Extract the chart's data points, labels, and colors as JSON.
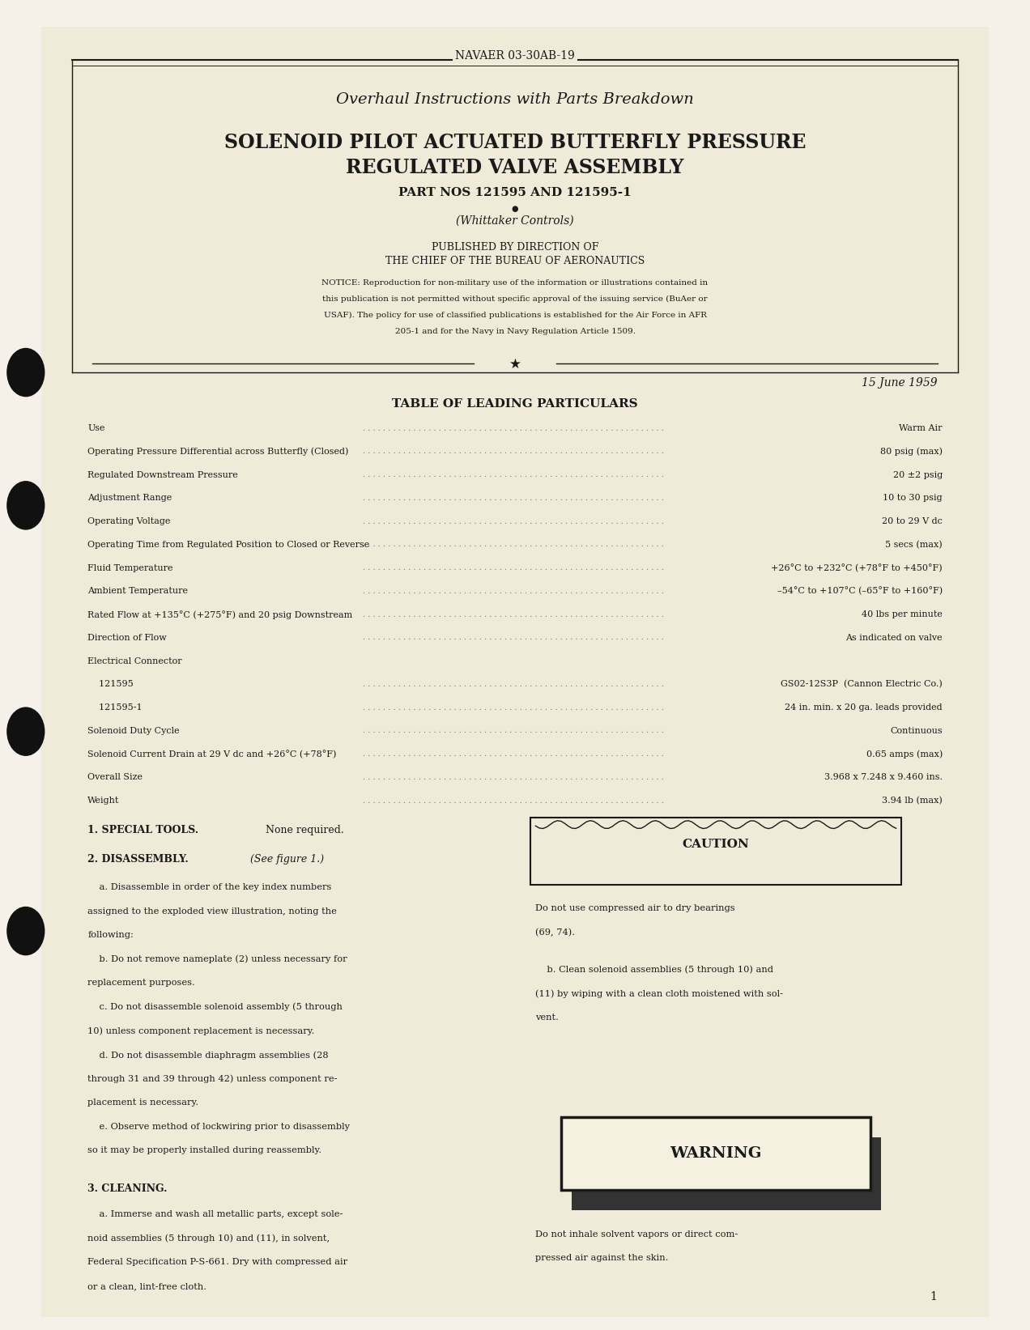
{
  "bg_color": "#f5f0e8",
  "page_color": "#f0ead8",
  "text_color": "#1a1a1a",
  "header_text": "NAVAER 03-30AB-19",
  "subtitle": "Overhaul Instructions with Parts Breakdown",
  "main_title_line1": "SOLENOID PILOT ACTUATED BUTTERFLY PRESSURE",
  "main_title_line2": "REGULATED VALVE ASSEMBLY",
  "part_nos": "PART NOS 121595 AND 121595-1",
  "manufacturer": "(Whittaker Controls)",
  "published_by_line1": "PUBLISHED BY DIRECTION OF",
  "published_by_line2": "THE CHIEF OF THE BUREAU OF AERONAUTICS",
  "notice_text": "NOTICE: Reproduction for non-military use of the information or illustrations contained in\nthis publication is not permitted without specific approval of the issuing service (BuAer or\nUSAF). The policy for use of classified publications is established for the Air Force in AFR\n205-1 and for the Navy in Navy Regulation Article 1509.",
  "date": "15 June 1959",
  "table_title": "TABLE OF LEADING PARTICULARS",
  "particulars": [
    [
      "Use",
      "Warm Air"
    ],
    [
      "Operating Pressure Differential across Butterfly (Closed)",
      "80 psig (max)"
    ],
    [
      "Regulated Downstream Pressure",
      "20 ±2 psig"
    ],
    [
      "Adjustment Range",
      "10 to 30 psig"
    ],
    [
      "Operating Voltage",
      "20 to 29 V dc"
    ],
    [
      "Operating Time from Regulated Position to Closed or Reverse",
      "5 secs (max)"
    ],
    [
      "Fluid Temperature",
      "+26°C to +232°C (+78°F to +450°F)"
    ],
    [
      "Ambient Temperature",
      "–54°C to +107°C (–65°F to +160°F)"
    ],
    [
      "Rated Flow at +135°C (+275°F) and 20 psig Downstream",
      "40 lbs per minute"
    ],
    [
      "Direction of Flow",
      "As indicated on valve"
    ],
    [
      "Electrical Connector",
      ""
    ],
    [
      "    121595",
      "GS02-12S3P  (Cannon Electric Co.)"
    ],
    [
      "    121595-1",
      "24 in. min. x 20 ga. leads provided"
    ],
    [
      "Solenoid Duty Cycle",
      "Continuous"
    ],
    [
      "Solenoid Current Drain at 29 V dc and +26°C (+78°F)",
      "0.65 amps (max)"
    ],
    [
      "Overall Size",
      "3.968 x 7.248 x 9.460 ins."
    ],
    [
      "Weight",
      "3.94 lb (max)"
    ]
  ],
  "section1_title": "1. SPECIAL TOOLS.",
  "section1_text": " None required.",
  "section2_title": "2. DISASSEMBLY.",
  "section2_italic": " (See figure 1.)",
  "section2_text": "    a. Disassemble in order of the key index numbers\nassigned to the exploded view illustration, noting the\nfollowing:\n    b. Do not remove nameplate (2) unless necessary for\nreplacement purposes.\n    c. Do not disassemble solenoid assembly (5 through\n10) unless component replacement is necessary.\n    d. Do not disassemble diaphragm assemblies (28\nthrough 31 and 39 through 42) unless component re-\nplacement is necessary.\n    e. Observe method of lockwiring prior to disassembly\nso it may be properly installed during reassembly.",
  "section3_title": "3. CLEANING.",
  "section3_text": "    a. Immerse and wash all metallic parts, except sole-\nnoid assemblies (5 through 10) and (11), in solvent,\nFederal Specification P-S-661. Dry with compressed air\nor a clean, lint-free cloth.",
  "caution_title": "CAUTION",
  "caution_text": "Do not use compressed air to dry bearings\n(69, 74).",
  "cleaning_b_text": "    b. Clean solenoid assemblies (5 through 10) and\n(11) by wiping with a clean cloth moistened with sol-\nvent.",
  "warning_title": "WARNING",
  "warning_text": "Do not inhale solvent vapors or direct com-\npressed air against the skin.",
  "page_number": "1"
}
